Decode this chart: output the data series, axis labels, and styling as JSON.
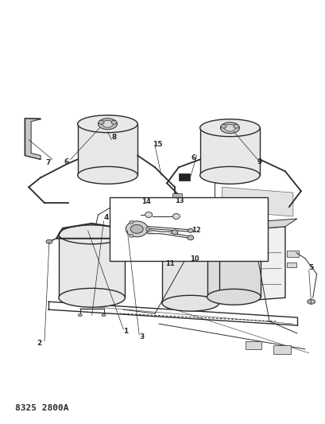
{
  "title_text": "8325 2800A",
  "background_color": "#ffffff",
  "line_color": "#2a2a2a",
  "label_color": "#1a1a1a",
  "label_fontsize": 6.5,
  "fig_width": 4.1,
  "fig_height": 5.33,
  "dpi": 100,
  "title_fontsize": 8,
  "title_fontweight": "bold",
  "gray_light": "#d8d8d8",
  "gray_med": "#b8b8b8",
  "gray_dark": "#888888"
}
